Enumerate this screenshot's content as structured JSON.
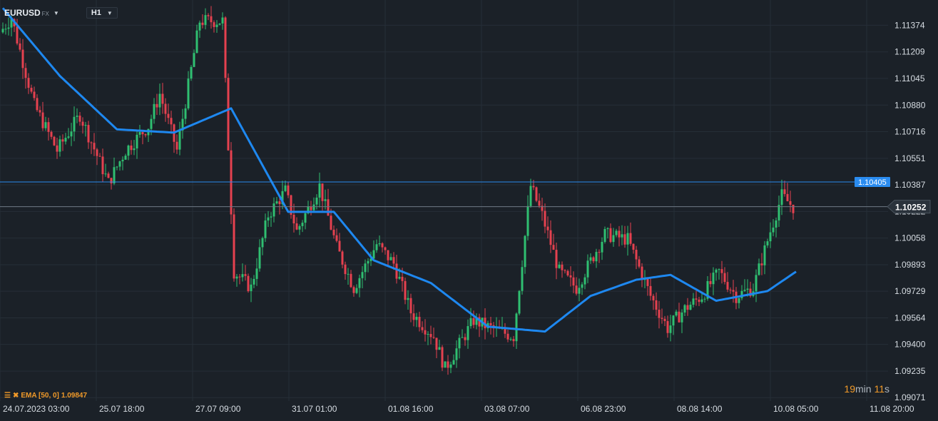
{
  "header": {
    "symbol": "EURUSD",
    "exchange": "FX",
    "timeframe": "H1"
  },
  "indicator": {
    "label": "EMA [50,  0]",
    "value": "1.09847",
    "color": "#f19a29"
  },
  "timer": {
    "minutes": "19",
    "min_unit": "min",
    "seconds": "11",
    "sec_unit": "s"
  },
  "colors": {
    "background": "#1b2128",
    "grid": "#262e37",
    "up": "#2fbf71",
    "down": "#e5414f",
    "ema": "#1e88f0",
    "hline": "#2a8cf0",
    "current": "#6f7a85",
    "axis_text": "#d7dde3"
  },
  "chart_data": {
    "type": "candlestick",
    "ylim": [
      1.0905,
      1.1153
    ],
    "yticks": [
      1.11374,
      1.11209,
      1.11045,
      1.1088,
      1.10716,
      1.10551,
      1.10387,
      1.10222,
      1.10058,
      1.09893,
      1.09729,
      1.09564,
      1.094,
      1.09235,
      1.09071
    ],
    "ytick_labels": [
      "1.11374",
      "1.11209",
      "1.11045",
      "1.10880",
      "1.10716",
      "1.10551",
      "1.10387",
      "1.10222",
      "1.10058",
      "1.09893",
      "1.09729",
      "1.09564",
      "1.09400",
      "1.09235",
      "1.09071"
    ],
    "xtick_labels": [
      "24.07.2023  03:00",
      "25.07  18:00",
      "27.07  09:00",
      "31.07  01:00",
      "01.08  16:00",
      "03.08  07:00",
      "06.08  23:00",
      "08.08  14:00",
      "10.08  05:00",
      "11.08  20:00"
    ],
    "horizontal_line": {
      "value": 1.10405,
      "label": "1.10405"
    },
    "current_price": {
      "value": 1.10252,
      "label": "1.10252"
    },
    "grid": true,
    "bars": 278,
    "path_hours": [
      0,
      4,
      12,
      20,
      28,
      38,
      44,
      52,
      56,
      62,
      70,
      78,
      82,
      88,
      94,
      100,
      104,
      112,
      118,
      124,
      132,
      138,
      144,
      152,
      156,
      166,
      172,
      180,
      186,
      190,
      196,
      202,
      212,
      220,
      228,
      234,
      240,
      246,
      252,
      258,
      264,
      270,
      274,
      278
    ],
    "path_prices": [
      1.1133,
      1.1142,
      1.1088,
      1.106,
      1.1082,
      1.104,
      1.106,
      1.1075,
      1.1095,
      1.106,
      1.114,
      1.114,
      1.0985,
      1.0975,
      1.102,
      1.1035,
      1.101,
      1.1038,
      1.1,
      1.0975,
      1.1002,
      1.099,
      1.096,
      1.0945,
      1.0925,
      1.0955,
      1.095,
      1.0945,
      1.1038,
      1.102,
      1.0985,
      1.0975,
      1.1008,
      1.1005,
      1.097,
      1.095,
      1.0962,
      1.097,
      1.0985,
      1.097,
      1.0975,
      1.101,
      1.1032,
      1.1025
    ],
    "ema_hours": [
      0,
      20,
      40,
      60,
      80,
      100,
      116,
      130,
      150,
      170,
      190,
      206,
      222,
      234,
      250,
      268,
      278
    ],
    "ema_values": [
      1.1148,
      1.1106,
      1.1073,
      1.1071,
      1.1086,
      1.1022,
      1.1022,
      1.0992,
      1.0978,
      1.0951,
      1.0948,
      1.097,
      1.098,
      1.0983,
      1.0967,
      1.0973,
      1.0985
    ]
  }
}
